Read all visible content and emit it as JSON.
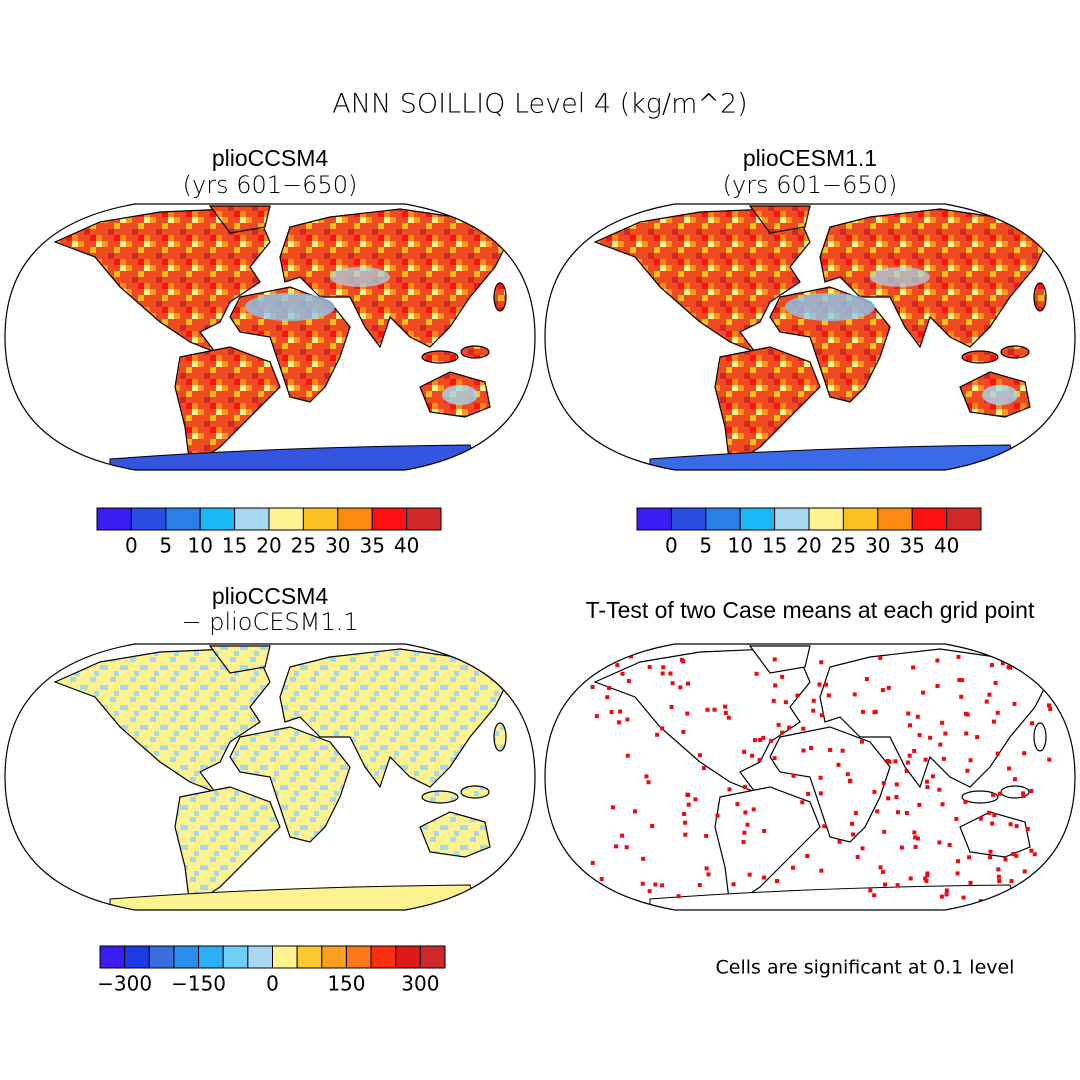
{
  "title": "ANN SOILLIQ Level 4 (kg/m^2)",
  "panels": [
    {
      "title": "plioCCSM4",
      "subtitle": "(yrs 601−650)"
    },
    {
      "title": "plioCESM1.1",
      "subtitle": "(yrs 601−650)"
    },
    {
      "title": "plioCCSM4",
      "subtitle": "− plioCESM1.1"
    },
    {
      "title": "T-Test of two Case means at each grid point"
    }
  ],
  "colorbars": [
    {
      "colors": [
        "#3a1cf5",
        "#2a4fe0",
        "#2a7ee8",
        "#1ab8f5",
        "#a6d8f0",
        "#fcf290",
        "#fcc020",
        "#fc8a10",
        "#fc1010",
        "#d02828"
      ],
      "labels": [
        "0",
        "5",
        "10",
        "15",
        "20",
        "25",
        "30",
        "35",
        "40"
      ]
    },
    {
      "colors": [
        "#3a1cf5",
        "#2a4fe0",
        "#2a7ee8",
        "#1ab8f5",
        "#a6d8f0",
        "#fcf290",
        "#fcc020",
        "#fc8a10",
        "#fc1010",
        "#d02828"
      ],
      "labels": [
        "0",
        "5",
        "10",
        "15",
        "20",
        "25",
        "30",
        "35",
        "40"
      ]
    },
    {
      "colors": [
        "#3a1cf5",
        "#1e3ae8",
        "#3a6ee0",
        "#2a90f0",
        "#2ab0f8",
        "#6ccff8",
        "#a6d8f0",
        "#fcf290",
        "#fcc830",
        "#fca020",
        "#fc7818",
        "#fc3010",
        "#e01818",
        "#d02828"
      ],
      "labels": [
        "−300",
        "−150",
        "0",
        "150",
        "300"
      ]
    }
  ],
  "note": "Cells are significant at 0.1 level"
}
